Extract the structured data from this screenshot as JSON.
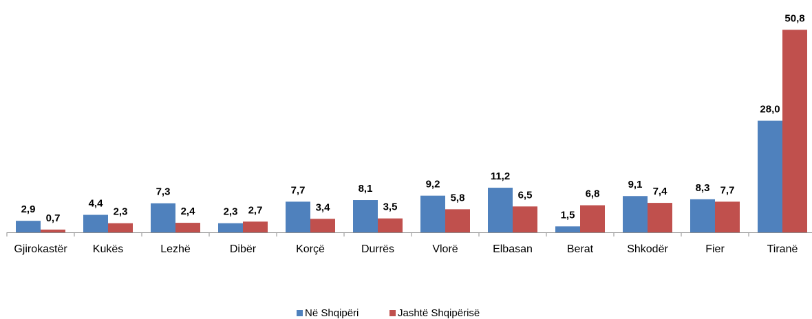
{
  "chart_data": {
    "type": "bar",
    "title": "",
    "xlabel": "",
    "ylabel": "",
    "ylim": [
      0,
      52
    ],
    "grid": false,
    "legend_position": "bottom",
    "categories": [
      "Gjirokastër",
      "Kukës",
      "Lezhë",
      "Dibër",
      "Korçë",
      "Durrës",
      "Vlorë",
      "Elbasan",
      "Berat",
      "Shkodër",
      "Fier",
      "Tiranë"
    ],
    "series": [
      {
        "name": "Në Shqipëri",
        "color": "#4f81bd",
        "values": [
          2.9,
          4.4,
          7.3,
          2.3,
          7.7,
          8.1,
          9.2,
          11.2,
          1.5,
          9.1,
          8.3,
          28.0
        ],
        "labels": [
          "2,9",
          "4,4",
          "7,3",
          "2,3",
          "7,7",
          "8,1",
          "9,2",
          "11,2",
          "1,5",
          "9,1",
          "8,3",
          "28,0"
        ]
      },
      {
        "name": "Jashtë Shqipërisë",
        "color": "#c0504d",
        "values": [
          0.7,
          2.3,
          2.4,
          2.7,
          3.4,
          3.5,
          5.8,
          6.5,
          6.8,
          7.4,
          7.7,
          50.8
        ],
        "labels": [
          "0,7",
          "2,3",
          "2,4",
          "2,7",
          "3,4",
          "3,5",
          "5,8",
          "6,5",
          "6,8",
          "7,4",
          "7,7",
          "50,8"
        ]
      }
    ]
  }
}
